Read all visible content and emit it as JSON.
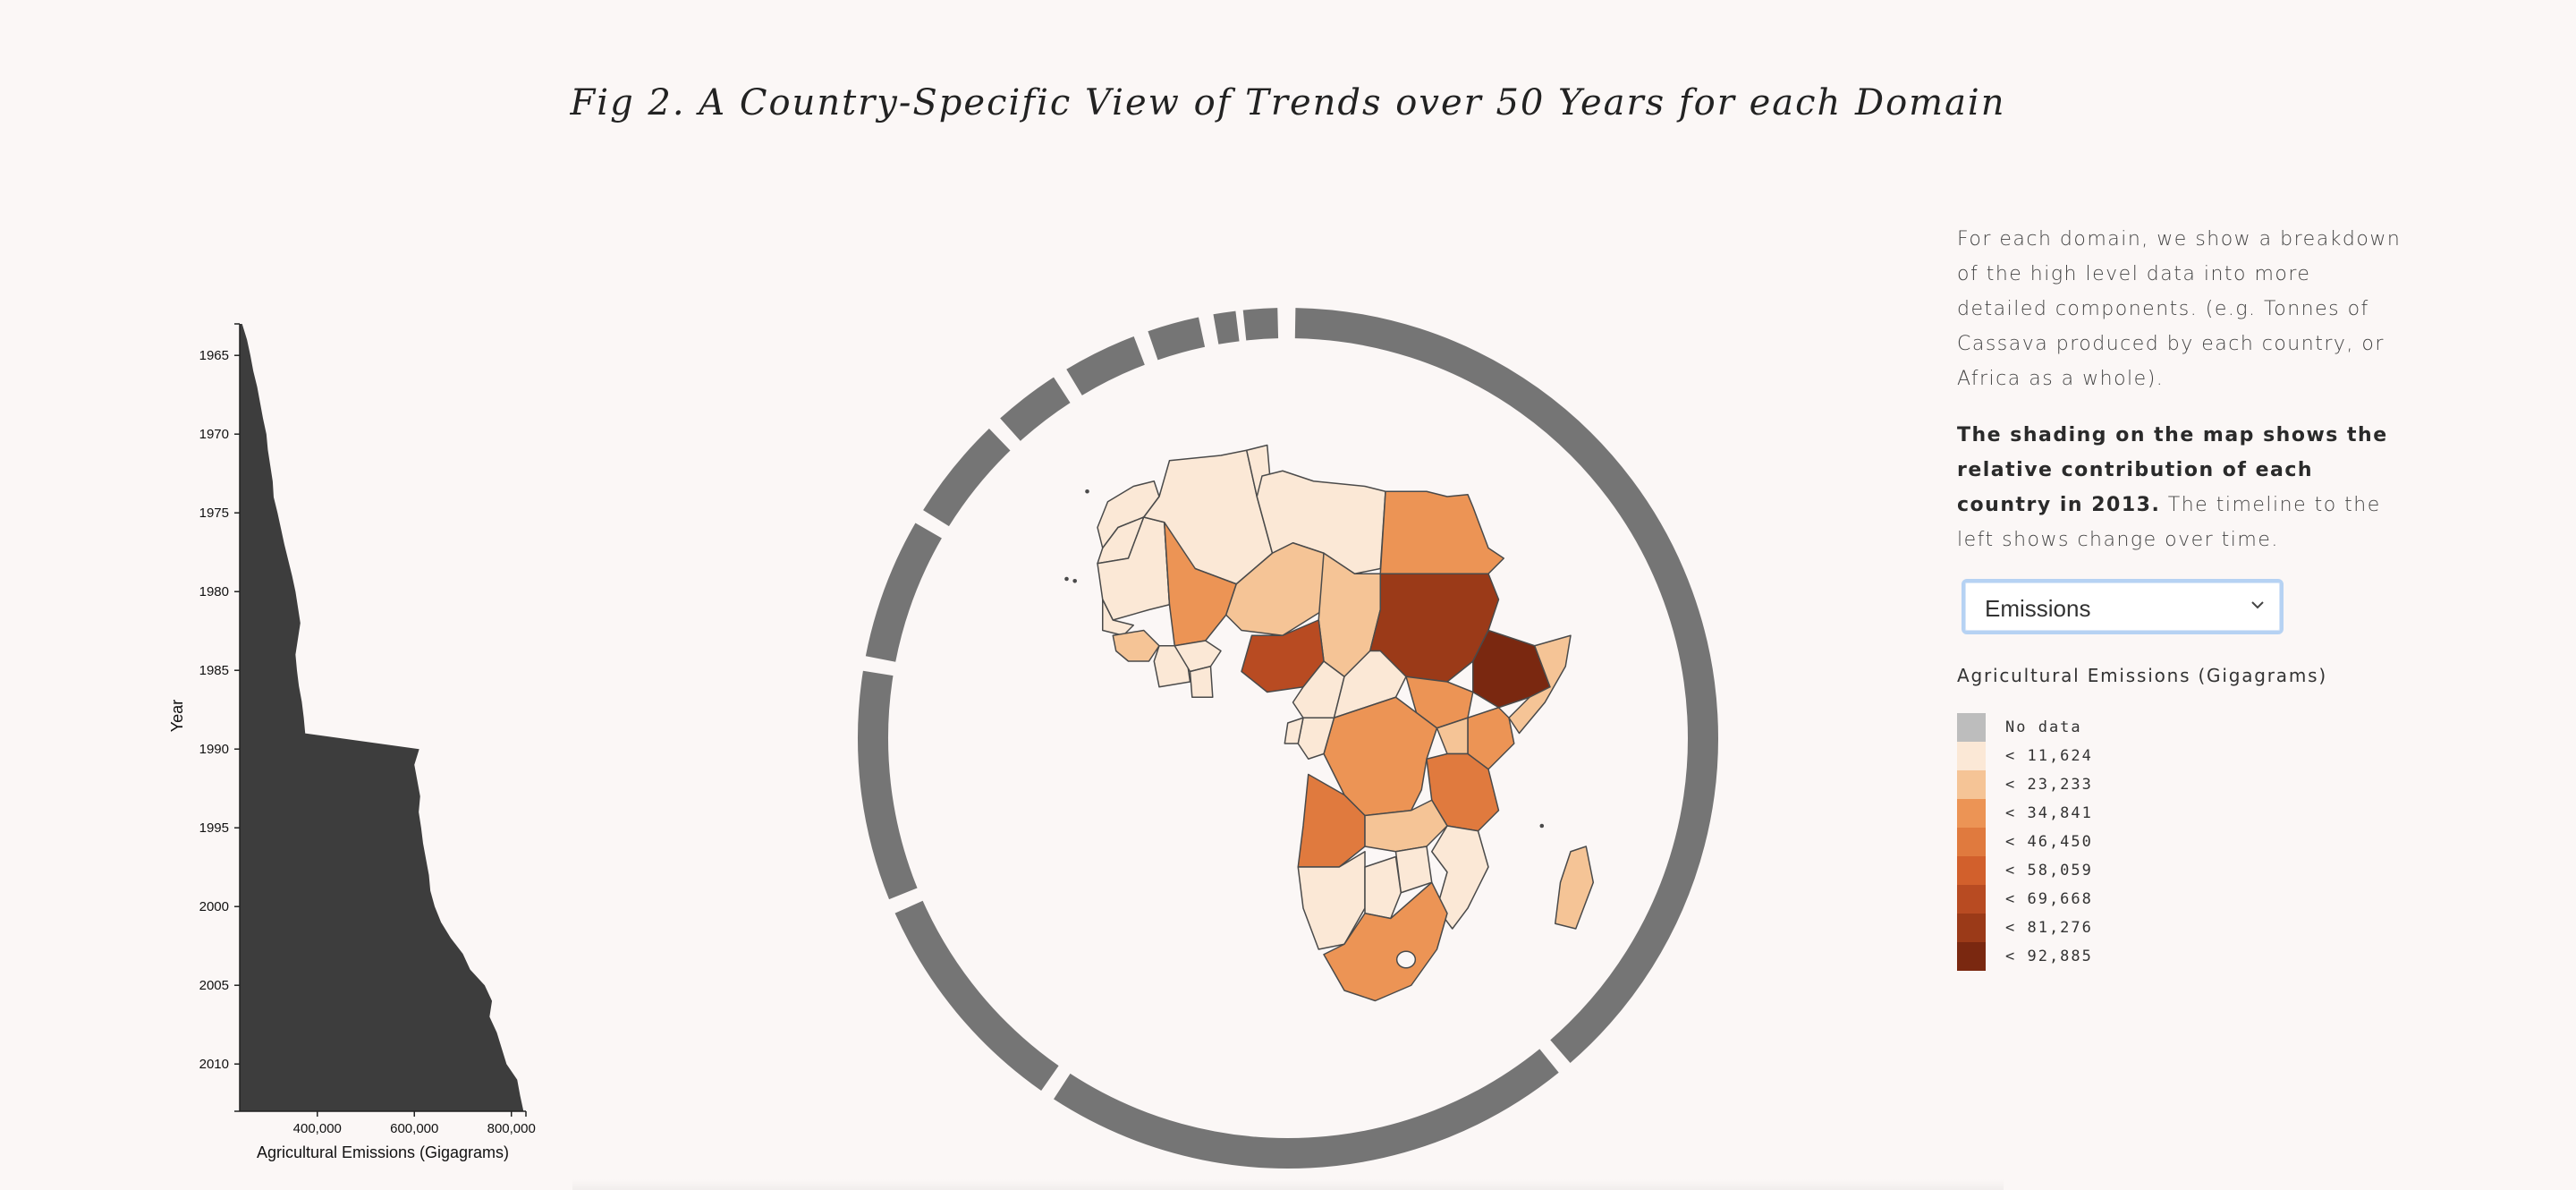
{
  "title": "Fig 2. A Country-Specific View of Trends over 50 Years for each Domain",
  "chart_data": {
    "type": "area",
    "orientation": "vertical",
    "ylabel": "Year",
    "xlabel": "Agricultural Emissions (Gigagrams)",
    "y_ticks": [
      1965,
      1970,
      1975,
      1980,
      1985,
      1990,
      1995,
      2000,
      2005,
      2010
    ],
    "x_ticks": [
      "400,000",
      "600,000",
      "800,000"
    ],
    "x_tick_values": [
      400000,
      600000,
      800000
    ],
    "xlim": [
      240000,
      830000
    ],
    "ylim": [
      1963,
      2013
    ],
    "color": "#3d3d3d",
    "series": [
      {
        "x": [
          1963,
          1964,
          1965,
          1966,
          1967,
          1968,
          1969,
          1970,
          1971,
          1972,
          1973,
          1974,
          1975,
          1976,
          1977,
          1978,
          1979,
          1980,
          1981,
          1982,
          1983,
          1984,
          1985,
          1986,
          1987,
          1988,
          1989,
          1990,
          1991,
          1992,
          1993,
          1994,
          1995,
          1996,
          1997,
          1998,
          1999,
          2000,
          2001,
          2002,
          2003,
          2004,
          2005,
          2006,
          2007,
          2008,
          2009,
          2010,
          2011,
          2012,
          2013
        ],
        "values": [
          245000,
          255000,
          262000,
          268000,
          276000,
          282000,
          288000,
          295000,
          298000,
          303000,
          308000,
          310000,
          318000,
          325000,
          332000,
          340000,
          348000,
          355000,
          360000,
          365000,
          360000,
          355000,
          358000,
          362000,
          368000,
          372000,
          375000,
          610000,
          600000,
          606000,
          612000,
          609000,
          614000,
          618000,
          624000,
          630000,
          633000,
          642000,
          655000,
          675000,
          700000,
          715000,
          745000,
          760000,
          755000,
          770000,
          780000,
          790000,
          812000,
          818000,
          825000
        ]
      }
    ],
    "map": {
      "legend_title": "Agricultural Emissions (Gigagrams)",
      "legend": [
        {
          "label": "No data",
          "color": "#bdbdbd"
        },
        {
          "label": "< 11,624",
          "color": "#fbe8d6"
        },
        {
          "label": "< 23,233",
          "color": "#f5c496"
        },
        {
          "label": "< 34,841",
          "color": "#ec9455"
        },
        {
          "label": "< 46,450",
          "color": "#e07a3e"
        },
        {
          "label": "< 58,059",
          "color": "#d2602c"
        },
        {
          "label": "< 69,668",
          "color": "#b84b22"
        },
        {
          "label": "< 81,276",
          "color": "#9b3a18"
        },
        {
          "label": "< 92,885",
          "color": "#7a2810"
        }
      ]
    }
  },
  "side": {
    "para1": "For each domain, we show a breakdown of the high level data into more detailed components. (e.g. Tonnes of Cassava produced by each country, or Africa as a whole).",
    "para2_bold": "The shading on the map shows the relative contribution of each country in 2013.",
    "para2_rest": " The timeline to the left shows change over time.",
    "select_value": "Emissions"
  }
}
